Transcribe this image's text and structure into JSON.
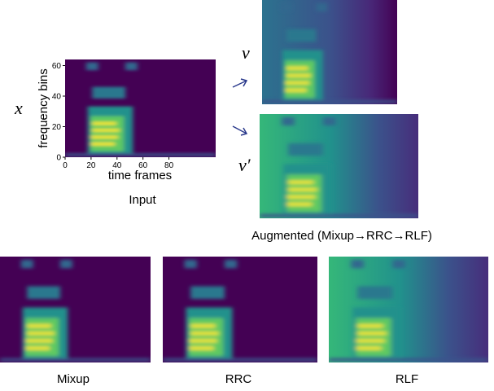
{
  "labels": {
    "x": "x",
    "v": "v",
    "v_prime": "v′",
    "input": "Input",
    "augmented": "Augmented (Mixup→RRC→RLF)",
    "mixup": "Mixup",
    "rrc": "RRC",
    "rlf": "RLF"
  },
  "input_plot": {
    "xlabel": "time frames",
    "ylabel": "frequency bins",
    "xlim": [
      0,
      116
    ],
    "ylim": [
      0,
      64
    ],
    "xticks": [
      0,
      20,
      40,
      60,
      80
    ],
    "yticks": [
      0,
      20,
      40,
      60
    ]
  }
}
